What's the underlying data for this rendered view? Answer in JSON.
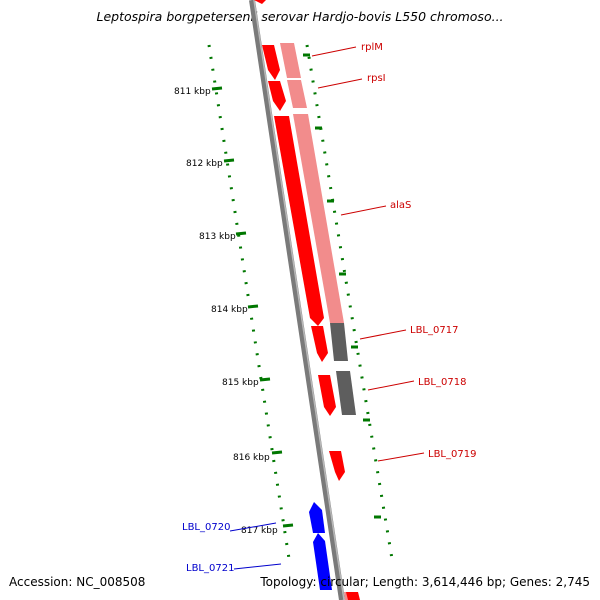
{
  "title": "Leptospira borgpetersenii serovar Hardjo-bovis L550 chromoso...",
  "footer": {
    "accession": "Accession: NC_008508",
    "summary": "Topology: circular; Length: 3,614,446 bp; Genes: 2,745"
  },
  "scale_labels": [
    "811 kbp",
    "812 kbp",
    "813 kbp",
    "814 kbp",
    "815 kbp",
    "816 kbp",
    "817 kbp"
  ],
  "gene_labels": {
    "rplM": "rplM",
    "rpsI": "rpsI",
    "alaS": "alaS",
    "LBL_0717": "LBL_0717",
    "LBL_0718": "LBL_0718",
    "LBL_0719": "LBL_0719",
    "LBL_0720": "LBL_0720",
    "LBL_0721": "LBL_0721"
  },
  "colors": {
    "forward_cds": "#ff0000",
    "forward_protein": "#f28c8c",
    "reverse_cds": "#0000ff",
    "no_homolog": "#666666",
    "backbone": "#888888",
    "ruler": "#007700",
    "red_label": "#cc0000",
    "blue_label": "#0000cc"
  }
}
